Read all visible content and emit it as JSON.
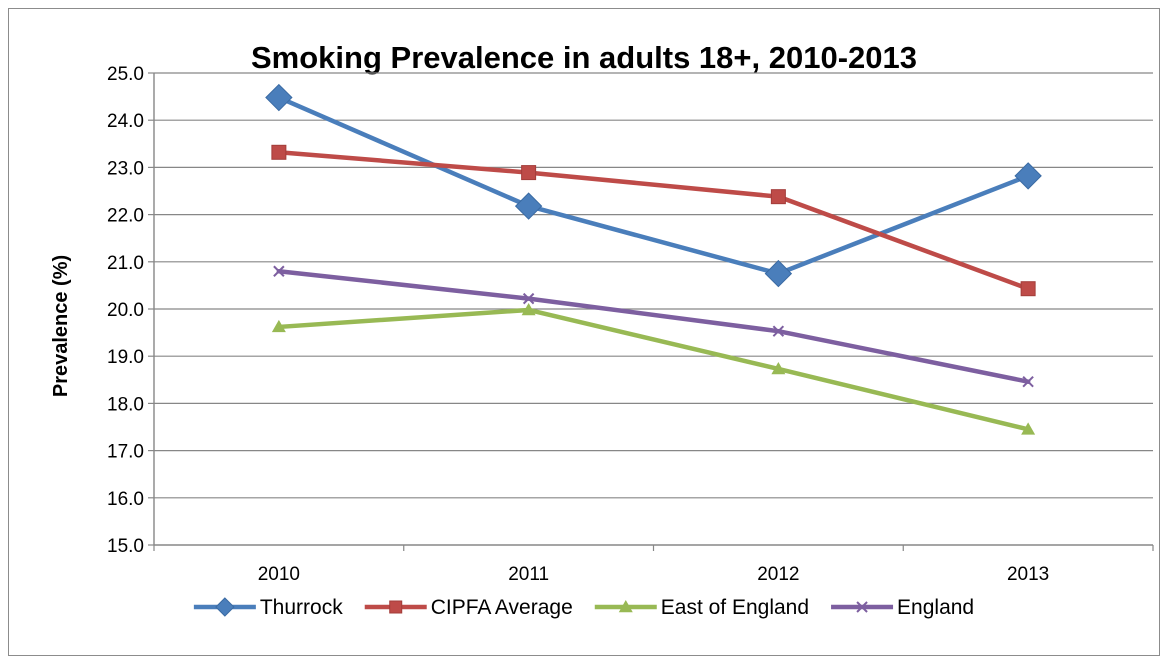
{
  "chart_data": {
    "type": "line",
    "title": "Smoking Prevalence in adults 18+, 2010-2013",
    "xlabel": "",
    "ylabel": "Prevalence (%)",
    "categories": [
      "2010",
      "2011",
      "2012",
      "2013"
    ],
    "ylim": [
      15.0,
      25.0
    ],
    "ytick_step": 1.0,
    "yticks": [
      "15.0",
      "16.0",
      "17.0",
      "18.0",
      "19.0",
      "20.0",
      "21.0",
      "22.0",
      "23.0",
      "24.0",
      "25.0"
    ],
    "grid": "horizontal",
    "legend": "bottom",
    "series": [
      {
        "name": "Thurrock",
        "color": "#4a7ebb",
        "marker": "diamond",
        "values": [
          24.48,
          22.18,
          20.75,
          22.82
        ]
      },
      {
        "name": "CIPFA Average",
        "color": "#be4b48",
        "marker": "square",
        "values": [
          23.32,
          22.89,
          22.38,
          20.43
        ]
      },
      {
        "name": "East of England",
        "color": "#98b954",
        "marker": "triangle",
        "values": [
          19.62,
          19.98,
          18.73,
          17.45
        ]
      },
      {
        "name": "England",
        "color": "#7d5fa0",
        "marker": "x",
        "values": [
          20.8,
          20.22,
          19.53,
          18.46
        ]
      }
    ]
  }
}
